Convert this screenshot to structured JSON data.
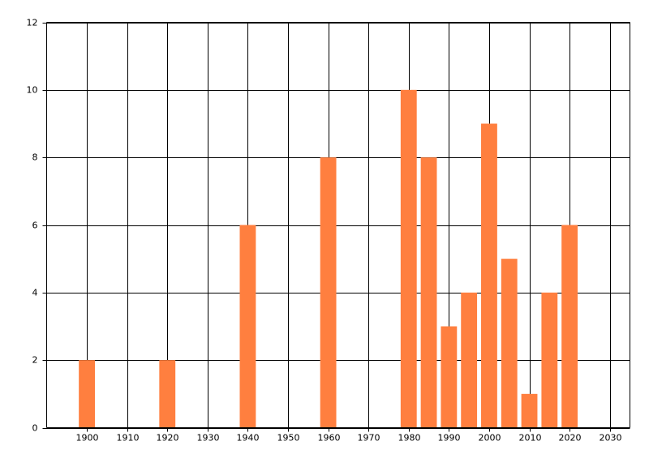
{
  "chart_data": {
    "type": "bar",
    "x": [
      1900,
      1920,
      1940,
      1960,
      1980,
      1985,
      1990,
      1995,
      2000,
      2005,
      2010,
      2015,
      2020
    ],
    "values": [
      2,
      2,
      6,
      8,
      10,
      8,
      3,
      4,
      9,
      5,
      1,
      4,
      6
    ],
    "color": "#ff7f3f",
    "xlim": [
      1890,
      2035
    ],
    "xticks": [
      1900,
      1910,
      1920,
      1930,
      1940,
      1950,
      1960,
      1970,
      1980,
      1990,
      2000,
      2010,
      2020,
      2030
    ],
    "ylim": [
      0,
      12
    ],
    "yticks": [
      0,
      2,
      4,
      6,
      8,
      10,
      12
    ],
    "grid": true
  }
}
